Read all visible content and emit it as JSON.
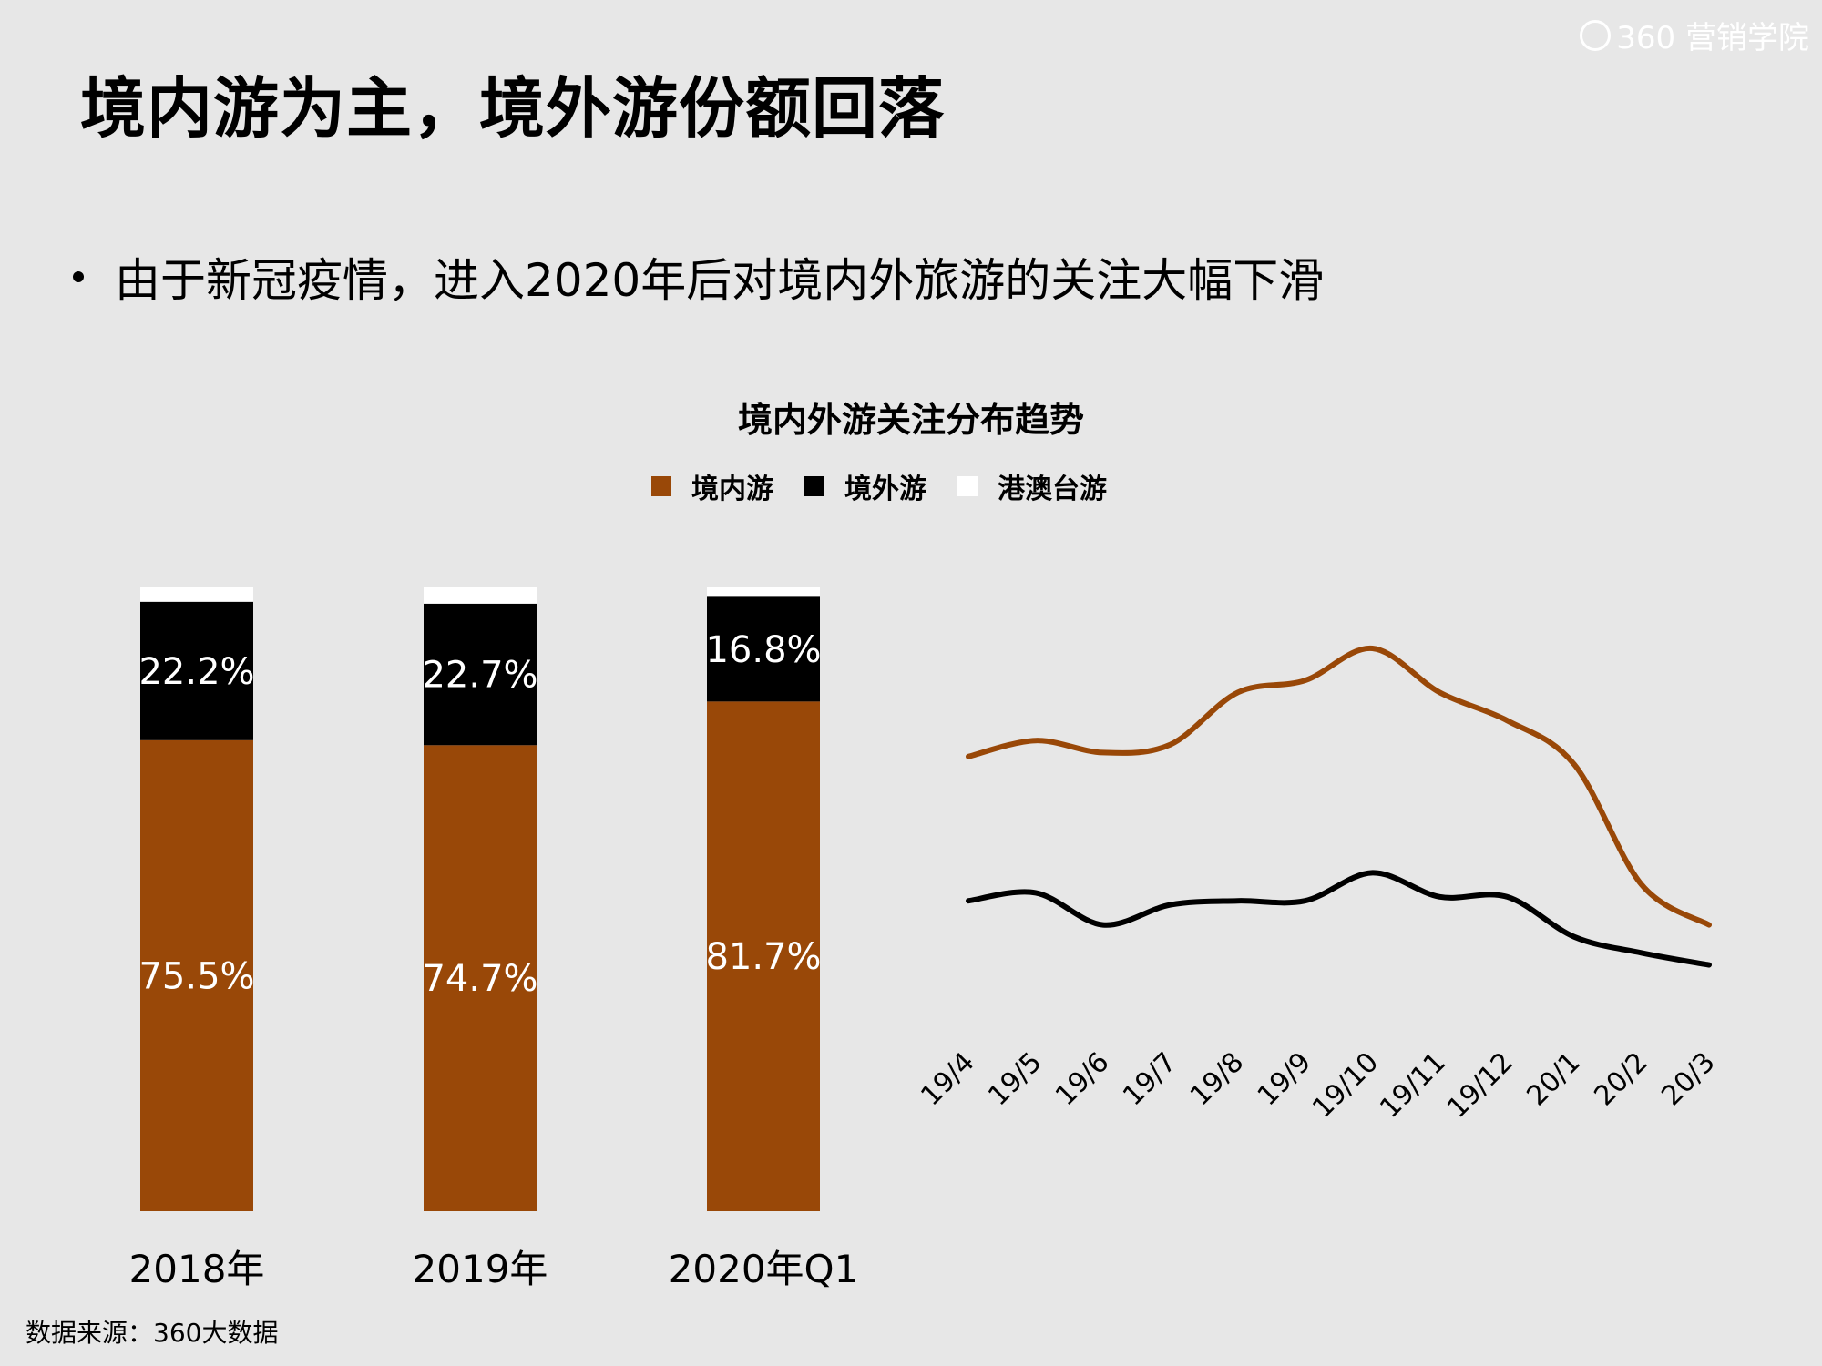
{
  "header": {
    "title": "境内游为主，境外游份额回落",
    "bullet": "由于新冠疫情，进入2020年后对境内外旅游的关注大幅下滑"
  },
  "logo": {
    "text": "360 营销学院"
  },
  "source": "数据来源：360大数据",
  "chart_title": "境内外游关注分布趋势",
  "legend": [
    {
      "label": "境内游",
      "color": "#994808"
    },
    {
      "label": "境外游",
      "color": "#000000"
    },
    {
      "label": "港澳台游",
      "color": "#ffffff"
    }
  ],
  "chart_data": [
    {
      "type": "bar",
      "stacked": true,
      "categories": [
        "2018年",
        "2019年",
        "2020年Q1"
      ],
      "series": [
        {
          "name": "境内游",
          "color": "#994808",
          "values": [
            75.5,
            74.7,
            81.7
          ],
          "labels": [
            "75.5%",
            "74.7%",
            "81.7%"
          ]
        },
        {
          "name": "境外游",
          "color": "#000000",
          "values": [
            22.2,
            22.7,
            16.8
          ],
          "labels": [
            "22.2%",
            "22.7%",
            "16.8%"
          ]
        },
        {
          "name": "港澳台游",
          "color": "#ffffff",
          "values": [
            2.3,
            2.6,
            1.5
          ]
        }
      ],
      "ylim": [
        0,
        100
      ]
    },
    {
      "type": "line",
      "x": [
        "19/4",
        "19/5",
        "19/6",
        "19/7",
        "19/8",
        "19/9",
        "19/10",
        "19/11",
        "19/12",
        "20/1",
        "20/2",
        "20/3"
      ],
      "series": [
        {
          "name": "境内游",
          "color": "#994808",
          "values": [
            68,
            72,
            69,
            71,
            84,
            87,
            95,
            84,
            77,
            66,
            36,
            26
          ]
        },
        {
          "name": "境外游",
          "color": "#000000",
          "values": [
            32,
            34,
            26,
            31,
            32,
            32,
            39,
            33,
            33,
            23,
            19,
            16
          ]
        }
      ],
      "ylim": [
        0,
        100
      ]
    }
  ]
}
